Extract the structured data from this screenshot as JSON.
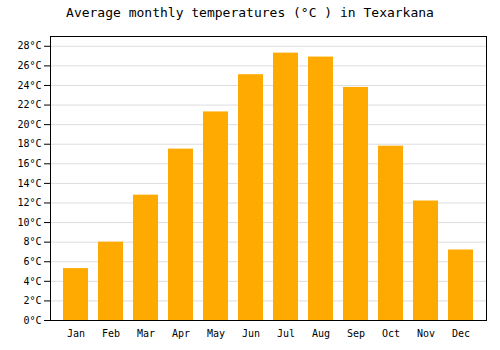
{
  "chart_data": {
    "type": "bar",
    "title": "Average monthly temperatures (°C ) in Texarkana",
    "categories": [
      "Jan",
      "Feb",
      "Mar",
      "Apr",
      "May",
      "Jun",
      "Jul",
      "Aug",
      "Sep",
      "Oct",
      "Nov",
      "Dec"
    ],
    "values": [
      5.3,
      8.0,
      12.8,
      17.5,
      21.3,
      25.1,
      27.3,
      26.9,
      23.8,
      17.8,
      12.2,
      7.2
    ],
    "color": "#FFAA00",
    "ylim": [
      0,
      29
    ],
    "yticks": [
      {
        "value": 0,
        "label": "0°C"
      },
      {
        "value": 2,
        "label": "2°C"
      },
      {
        "value": 4,
        "label": "4°C"
      },
      {
        "value": 6,
        "label": "6°C"
      },
      {
        "value": 8,
        "label": "8°C"
      },
      {
        "value": 10,
        "label": "10°C"
      },
      {
        "value": 12,
        "label": "12°C"
      },
      {
        "value": 14,
        "label": "14°C"
      },
      {
        "value": 16,
        "label": "16°C"
      },
      {
        "value": 18,
        "label": "18°C"
      },
      {
        "value": 20,
        "label": "20°C"
      },
      {
        "value": 22,
        "label": "22°C"
      },
      {
        "value": 24,
        "label": "24°C"
      },
      {
        "value": 26,
        "label": "26°C"
      },
      {
        "value": 28,
        "label": "28°C"
      }
    ],
    "grid": true
  }
}
